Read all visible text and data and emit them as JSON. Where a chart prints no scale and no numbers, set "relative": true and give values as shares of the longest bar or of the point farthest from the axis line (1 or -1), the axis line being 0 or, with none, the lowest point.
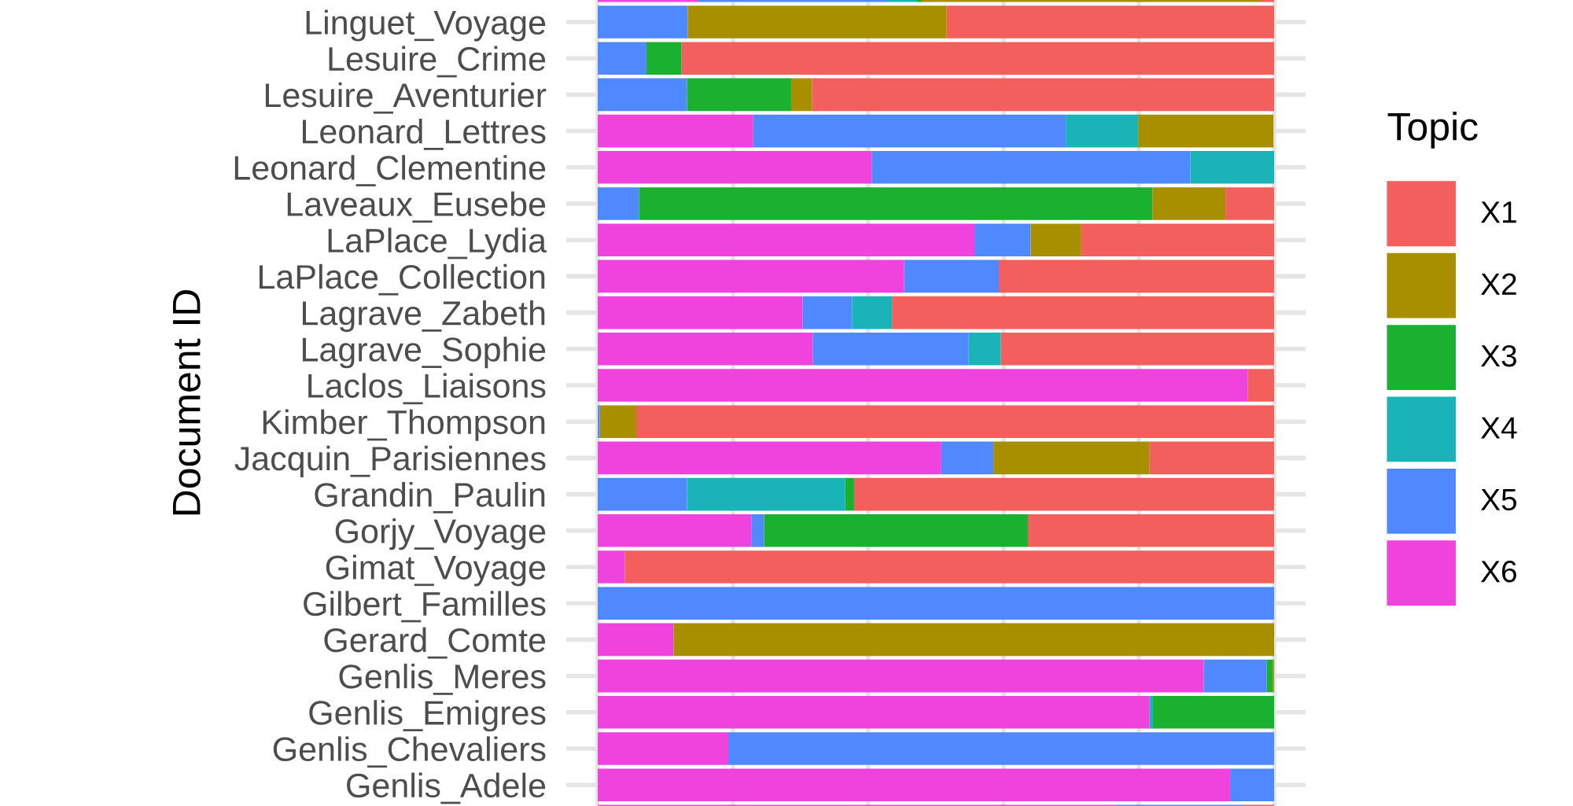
{
  "chart_data": {
    "type": "bar",
    "orientation": "horizontal",
    "stacked": true,
    "relative": true,
    "ylabel": "Document ID",
    "legend_title": "Topic",
    "legend": "right",
    "grid": true,
    "categories": [
      null,
      "Linguet_Voyage",
      "Lesuire_Crime",
      "Lesuire_Aventurier",
      "Leonard_Lettres",
      "Leonard_Clementine",
      "Laveaux_Eusebe",
      "LaPlace_Lydia",
      "LaPlace_Collection",
      "Lagrave_Zabeth",
      "Lagrave_Sophie",
      "Laclos_Liaisons",
      "Kimber_Thompson",
      "Jacquin_Parisiennes",
      "Grandin_Paulin",
      "Gorjy_Voyage",
      "Gimat_Voyage",
      "Gilbert_Familles",
      "Gerard_Comte",
      "Genlis_Meres",
      "Genlis_Emigres",
      "Genlis_Chevaliers",
      "Genlis_Adele",
      null
    ],
    "series": [
      {
        "name": "X6",
        "color": "#f042dd",
        "values": [
          0.148,
          0,
          0,
          0,
          0.23,
          0.405,
          0,
          0.557,
          0.453,
          0.303,
          0.318,
          0.961,
          0,
          0.508,
          0,
          0.227,
          0.04,
          0,
          0.112,
          0.896,
          0.816,
          0.193,
          0.935,
          0.766
        ]
      },
      {
        "name": "X5",
        "color": "#5088ff",
        "values": [
          0.281,
          0.133,
          0.072,
          0.132,
          0.462,
          0.471,
          0.061,
          0.083,
          0.14,
          0.073,
          0.23,
          0,
          0.003,
          0.077,
          0.132,
          0.019,
          0,
          1.0,
          0,
          0.093,
          0,
          0.807,
          0.065,
          0.189
        ]
      },
      {
        "name": "X4",
        "color": "#19b3b8",
        "values": [
          0.043,
          0,
          0,
          0,
          0.107,
          0.124,
          0,
          0,
          0,
          0.059,
          0.048,
          0,
          0,
          0,
          0.234,
          0,
          0,
          0,
          0,
          0,
          0.005,
          0,
          0,
          0
        ]
      },
      {
        "name": "X3",
        "color": "#19b12f",
        "values": [
          0.007,
          0,
          0.052,
          0.154,
          0,
          0,
          0.759,
          0,
          0,
          0,
          0,
          0,
          0,
          0,
          0.013,
          0.39,
          0,
          0,
          0,
          0.009,
          0.179,
          0,
          0,
          0
        ]
      },
      {
        "name": "X2",
        "color": "#a88f00",
        "values": [
          0.501,
          0.383,
          0,
          0.031,
          0.2,
          0,
          0.108,
          0.075,
          0,
          0,
          0,
          0,
          0.054,
          0.231,
          0,
          0,
          0,
          0,
          0.888,
          0.002,
          0,
          0,
          0,
          0
        ]
      },
      {
        "name": "X1",
        "color": "#f25f5c",
        "values": [
          0.02,
          0.484,
          0.876,
          0.683,
          0,
          0,
          0.072,
          0.285,
          0.407,
          0.565,
          0.404,
          0.039,
          0.943,
          0.184,
          0.621,
          0.364,
          0.96,
          0,
          0,
          0,
          0,
          0,
          0,
          0.045
        ]
      }
    ]
  }
}
